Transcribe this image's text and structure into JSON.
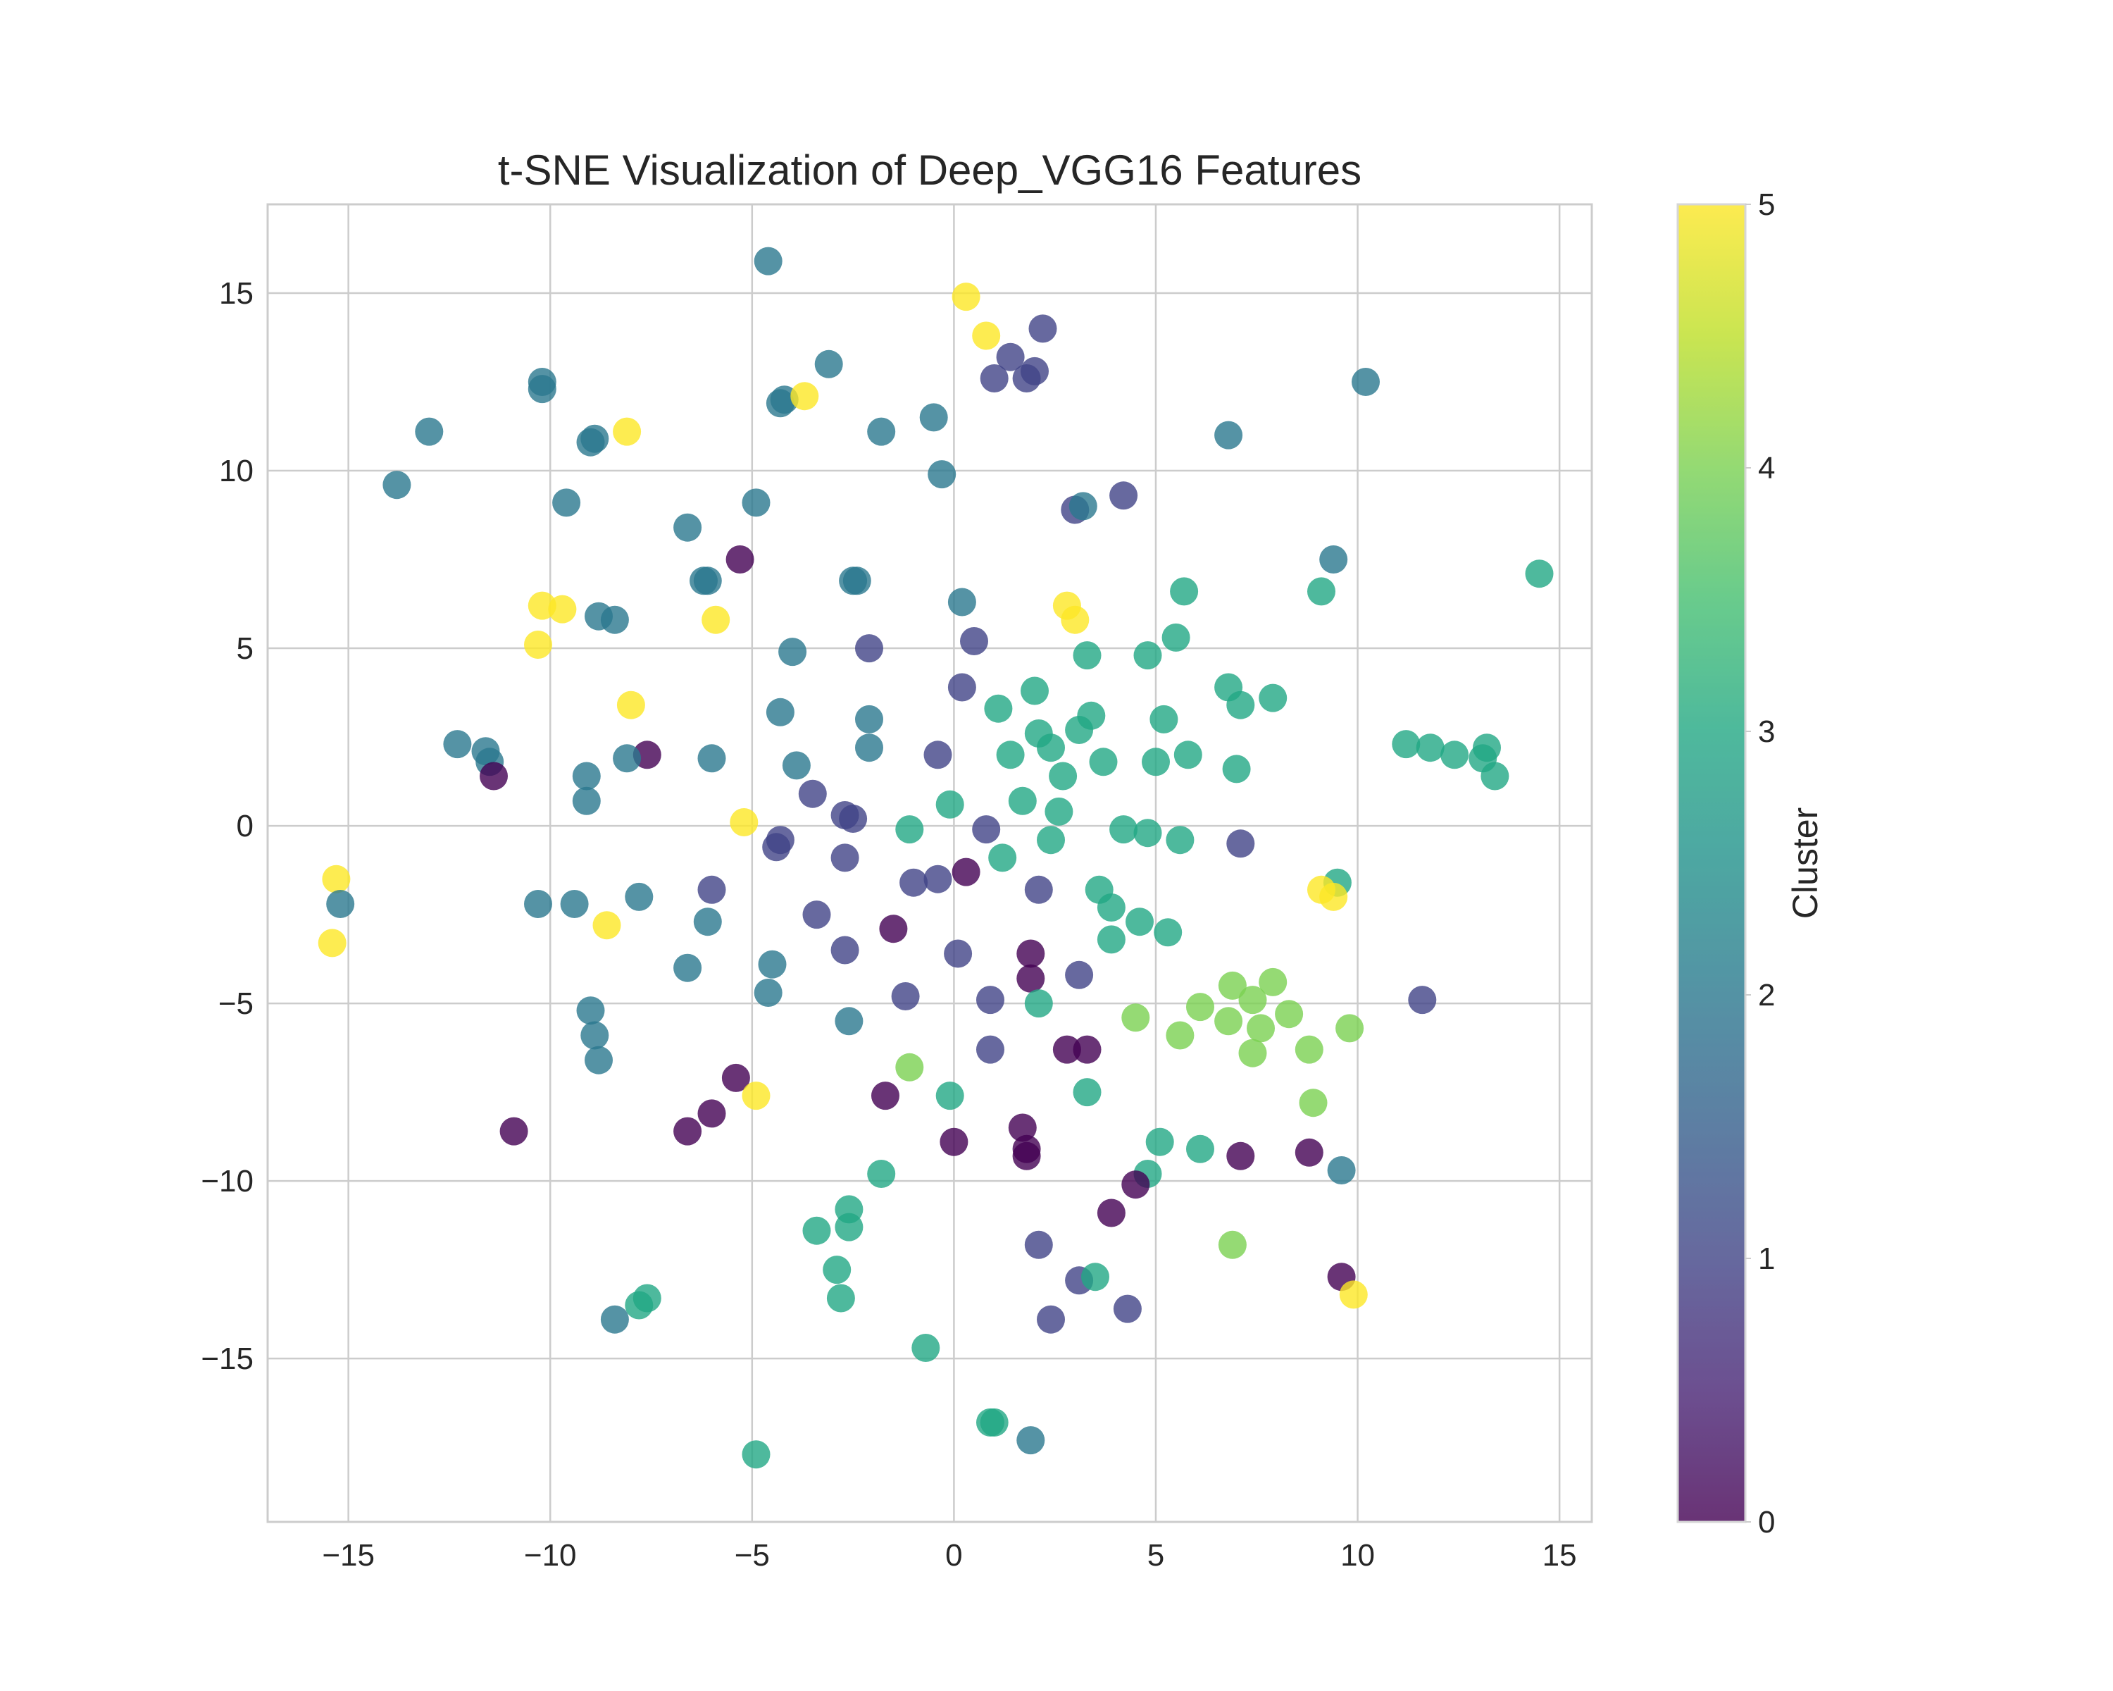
{
  "chart_data": {
    "type": "scatter",
    "title": "t-SNE Visualization of Deep_VGG16 Features",
    "xlabel": "",
    "ylabel": "",
    "xlim": [
      -17,
      15.8
    ],
    "ylim": [
      -19.6,
      17.5
    ],
    "xticks": [
      -15,
      -10,
      -5,
      0,
      5,
      10,
      15
    ],
    "xtick_labels": [
      "−15",
      "−10",
      "−5",
      "0",
      "5",
      "10",
      "15"
    ],
    "yticks": [
      -15,
      -10,
      -5,
      0,
      5,
      10,
      15
    ],
    "ytick_labels": [
      "−15",
      "−10",
      "−5",
      "0",
      "5",
      "10",
      "15"
    ],
    "grid": true,
    "colormap": "viridis",
    "colorbar": {
      "label": "Cluster",
      "min": 0,
      "max": 5,
      "ticks": [
        0,
        1,
        2,
        3,
        4,
        5
      ],
      "tick_labels": [
        "0",
        "1",
        "2",
        "3",
        "4",
        "5"
      ]
    },
    "points": [
      {
        "x": -4.6,
        "y": 15.9,
        "c": 2
      },
      {
        "x": 0.3,
        "y": 14.9,
        "c": 5
      },
      {
        "x": 0.8,
        "y": 13.8,
        "c": 5
      },
      {
        "x": 2.2,
        "y": 14.0,
        "c": 1
      },
      {
        "x": 1.4,
        "y": 13.2,
        "c": 1
      },
      {
        "x": 1.0,
        "y": 12.6,
        "c": 1
      },
      {
        "x": 1.8,
        "y": 12.6,
        "c": 1
      },
      {
        "x": 2.0,
        "y": 12.8,
        "c": 1
      },
      {
        "x": -3.1,
        "y": 13.0,
        "c": 2
      },
      {
        "x": -4.2,
        "y": 12.0,
        "c": 2
      },
      {
        "x": -4.3,
        "y": 11.9,
        "c": 2
      },
      {
        "x": -3.7,
        "y": 12.1,
        "c": 5
      },
      {
        "x": -1.8,
        "y": 11.1,
        "c": 2
      },
      {
        "x": -0.5,
        "y": 11.5,
        "c": 2
      },
      {
        "x": -0.3,
        "y": 9.9,
        "c": 2
      },
      {
        "x": -10.2,
        "y": 12.5,
        "c": 2
      },
      {
        "x": -10.2,
        "y": 12.3,
        "c": 2
      },
      {
        "x": -13.0,
        "y": 11.1,
        "c": 2
      },
      {
        "x": -13.8,
        "y": 9.6,
        "c": 2
      },
      {
        "x": -8.9,
        "y": 10.9,
        "c": 2
      },
      {
        "x": -9.0,
        "y": 10.8,
        "c": 2
      },
      {
        "x": -8.1,
        "y": 11.1,
        "c": 5
      },
      {
        "x": -9.6,
        "y": 9.1,
        "c": 2
      },
      {
        "x": -6.6,
        "y": 8.4,
        "c": 2
      },
      {
        "x": -4.9,
        "y": 9.1,
        "c": 2
      },
      {
        "x": -5.3,
        "y": 7.5,
        "c": 0
      },
      {
        "x": -6.1,
        "y": 6.9,
        "c": 2
      },
      {
        "x": -6.2,
        "y": 6.9,
        "c": 2
      },
      {
        "x": -2.4,
        "y": 6.9,
        "c": 2
      },
      {
        "x": -2.5,
        "y": 6.9,
        "c": 2
      },
      {
        "x": 3.0,
        "y": 8.9,
        "c": 1
      },
      {
        "x": 3.2,
        "y": 9.0,
        "c": 2
      },
      {
        "x": 4.2,
        "y": 9.3,
        "c": 1
      },
      {
        "x": 6.8,
        "y": 11.0,
        "c": 2
      },
      {
        "x": 10.2,
        "y": 12.5,
        "c": 2
      },
      {
        "x": 9.4,
        "y": 7.5,
        "c": 2
      },
      {
        "x": 9.1,
        "y": 6.6,
        "c": 3
      },
      {
        "x": 14.5,
        "y": 7.1,
        "c": 3
      },
      {
        "x": -10.2,
        "y": 6.2,
        "c": 5
      },
      {
        "x": -9.7,
        "y": 6.1,
        "c": 5
      },
      {
        "x": -10.3,
        "y": 5.1,
        "c": 5
      },
      {
        "x": -8.8,
        "y": 5.9,
        "c": 2
      },
      {
        "x": -8.4,
        "y": 5.8,
        "c": 2
      },
      {
        "x": -5.9,
        "y": 5.8,
        "c": 5
      },
      {
        "x": -4.0,
        "y": 4.9,
        "c": 2
      },
      {
        "x": -2.1,
        "y": 5.0,
        "c": 1
      },
      {
        "x": 0.2,
        "y": 6.3,
        "c": 2
      },
      {
        "x": 0.5,
        "y": 5.2,
        "c": 1
      },
      {
        "x": 2.8,
        "y": 6.2,
        "c": 5
      },
      {
        "x": 3.0,
        "y": 5.8,
        "c": 5
      },
      {
        "x": 5.7,
        "y": 6.6,
        "c": 3
      },
      {
        "x": 5.5,
        "y": 5.3,
        "c": 3
      },
      {
        "x": 4.8,
        "y": 4.8,
        "c": 3
      },
      {
        "x": 3.3,
        "y": 4.8,
        "c": 3
      },
      {
        "x": 0.2,
        "y": 3.9,
        "c": 1
      },
      {
        "x": 1.1,
        "y": 3.3,
        "c": 3
      },
      {
        "x": 2.0,
        "y": 3.8,
        "c": 3
      },
      {
        "x": 3.4,
        "y": 3.1,
        "c": 3
      },
      {
        "x": 3.1,
        "y": 2.7,
        "c": 3
      },
      {
        "x": 2.1,
        "y": 2.6,
        "c": 3
      },
      {
        "x": 2.4,
        "y": 2.2,
        "c": 3
      },
      {
        "x": 1.4,
        "y": 2.0,
        "c": 3
      },
      {
        "x": 3.7,
        "y": 1.8,
        "c": 3
      },
      {
        "x": 2.7,
        "y": 1.4,
        "c": 3
      },
      {
        "x": 5.2,
        "y": 3.0,
        "c": 3
      },
      {
        "x": 5.0,
        "y": 1.8,
        "c": 3
      },
      {
        "x": 5.8,
        "y": 2.0,
        "c": 3
      },
      {
        "x": 6.8,
        "y": 3.9,
        "c": 3
      },
      {
        "x": 7.1,
        "y": 3.4,
        "c": 3
      },
      {
        "x": 7.9,
        "y": 3.6,
        "c": 3
      },
      {
        "x": 7.0,
        "y": 1.6,
        "c": 3
      },
      {
        "x": -8.0,
        "y": 3.4,
        "c": 5
      },
      {
        "x": -7.6,
        "y": 2.0,
        "c": 0
      },
      {
        "x": -8.1,
        "y": 1.9,
        "c": 2
      },
      {
        "x": -12.3,
        "y": 2.3,
        "c": 2
      },
      {
        "x": -11.6,
        "y": 2.1,
        "c": 2
      },
      {
        "x": -11.5,
        "y": 1.8,
        "c": 2
      },
      {
        "x": -11.4,
        "y": 1.4,
        "c": 0
      },
      {
        "x": -9.1,
        "y": 1.4,
        "c": 2
      },
      {
        "x": -9.1,
        "y": 0.7,
        "c": 2
      },
      {
        "x": -6.0,
        "y": 1.9,
        "c": 2
      },
      {
        "x": -4.3,
        "y": 3.2,
        "c": 2
      },
      {
        "x": -3.9,
        "y": 1.7,
        "c": 2
      },
      {
        "x": -2.1,
        "y": 3.0,
        "c": 2
      },
      {
        "x": -2.1,
        "y": 2.2,
        "c": 2
      },
      {
        "x": -3.5,
        "y": 0.9,
        "c": 1
      },
      {
        "x": -0.4,
        "y": 2.0,
        "c": 1
      },
      {
        "x": -5.2,
        "y": 0.1,
        "c": 5
      },
      {
        "x": -2.7,
        "y": 0.3,
        "c": 1
      },
      {
        "x": -2.5,
        "y": 0.2,
        "c": 1
      },
      {
        "x": -4.3,
        "y": -0.4,
        "c": 1
      },
      {
        "x": -4.4,
        "y": -0.6,
        "c": 1
      },
      {
        "x": -2.7,
        "y": -0.9,
        "c": 1
      },
      {
        "x": -1.1,
        "y": -0.1,
        "c": 3
      },
      {
        "x": -0.1,
        "y": 0.6,
        "c": 3
      },
      {
        "x": 0.8,
        "y": -0.1,
        "c": 1
      },
      {
        "x": 1.7,
        "y": 0.7,
        "c": 3
      },
      {
        "x": 2.6,
        "y": 0.4,
        "c": 3
      },
      {
        "x": 2.4,
        "y": -0.4,
        "c": 3
      },
      {
        "x": 1.2,
        "y": -0.9,
        "c": 3
      },
      {
        "x": 4.2,
        "y": -0.1,
        "c": 3
      },
      {
        "x": 4.8,
        "y": -0.2,
        "c": 3
      },
      {
        "x": 5.6,
        "y": -0.4,
        "c": 3
      },
      {
        "x": 7.1,
        "y": -0.5,
        "c": 1
      },
      {
        "x": 11.2,
        "y": 2.3,
        "c": 3
      },
      {
        "x": 11.8,
        "y": 2.2,
        "c": 3
      },
      {
        "x": 12.4,
        "y": 2.0,
        "c": 3
      },
      {
        "x": 13.1,
        "y": 1.9,
        "c": 3
      },
      {
        "x": 13.2,
        "y": 2.2,
        "c": 3
      },
      {
        "x": 13.4,
        "y": 1.4,
        "c": 3
      },
      {
        "x": -15.3,
        "y": -1.5,
        "c": 5
      },
      {
        "x": -15.2,
        "y": -2.2,
        "c": 2
      },
      {
        "x": -15.4,
        "y": -3.3,
        "c": 5
      },
      {
        "x": -10.3,
        "y": -2.2,
        "c": 2
      },
      {
        "x": -9.4,
        "y": -2.2,
        "c": 2
      },
      {
        "x": -7.8,
        "y": -2.0,
        "c": 2
      },
      {
        "x": -8.6,
        "y": -2.8,
        "c": 5
      },
      {
        "x": -6.0,
        "y": -1.8,
        "c": 1
      },
      {
        "x": -6.1,
        "y": -2.7,
        "c": 2
      },
      {
        "x": -6.6,
        "y": -4.0,
        "c": 2
      },
      {
        "x": -3.4,
        "y": -2.5,
        "c": 1
      },
      {
        "x": -1.5,
        "y": -2.9,
        "c": 0
      },
      {
        "x": -1.0,
        "y": -1.6,
        "c": 1
      },
      {
        "x": -0.4,
        "y": -1.5,
        "c": 1
      },
      {
        "x": 0.3,
        "y": -1.3,
        "c": 0
      },
      {
        "x": 2.1,
        "y": -1.8,
        "c": 1
      },
      {
        "x": 3.6,
        "y": -1.8,
        "c": 3
      },
      {
        "x": 3.9,
        "y": -2.3,
        "c": 3
      },
      {
        "x": 4.6,
        "y": -2.7,
        "c": 3
      },
      {
        "x": 5.3,
        "y": -3.0,
        "c": 3
      },
      {
        "x": 3.9,
        "y": -3.2,
        "c": 3
      },
      {
        "x": 9.5,
        "y": -1.6,
        "c": 3
      },
      {
        "x": 9.1,
        "y": -1.8,
        "c": 5
      },
      {
        "x": 9.4,
        "y": -2.0,
        "c": 5
      },
      {
        "x": -2.7,
        "y": -3.5,
        "c": 1
      },
      {
        "x": 0.1,
        "y": -3.6,
        "c": 1
      },
      {
        "x": 1.9,
        "y": -3.6,
        "c": 0
      },
      {
        "x": 1.9,
        "y": -4.3,
        "c": 0
      },
      {
        "x": 3.1,
        "y": -4.2,
        "c": 1
      },
      {
        "x": -4.5,
        "y": -3.9,
        "c": 2
      },
      {
        "x": -4.6,
        "y": -4.7,
        "c": 2
      },
      {
        "x": -1.2,
        "y": -4.8,
        "c": 1
      },
      {
        "x": 0.9,
        "y": -4.9,
        "c": 1
      },
      {
        "x": -2.6,
        "y": -5.5,
        "c": 2
      },
      {
        "x": 2.1,
        "y": -5.0,
        "c": 3
      },
      {
        "x": -9.0,
        "y": -5.2,
        "c": 2
      },
      {
        "x": -8.9,
        "y": -5.9,
        "c": 2
      },
      {
        "x": -8.8,
        "y": -6.6,
        "c": 2
      },
      {
        "x": 4.5,
        "y": -5.4,
        "c": 4
      },
      {
        "x": 6.1,
        "y": -5.1,
        "c": 4
      },
      {
        "x": 5.6,
        "y": -5.9,
        "c": 4
      },
      {
        "x": 6.9,
        "y": -4.5,
        "c": 4
      },
      {
        "x": 7.4,
        "y": -4.9,
        "c": 4
      },
      {
        "x": 6.8,
        "y": -5.5,
        "c": 4
      },
      {
        "x": 7.9,
        "y": -4.4,
        "c": 4
      },
      {
        "x": 7.6,
        "y": -5.7,
        "c": 4
      },
      {
        "x": 8.3,
        "y": -5.3,
        "c": 4
      },
      {
        "x": 7.4,
        "y": -6.4,
        "c": 4
      },
      {
        "x": 8.8,
        "y": -6.3,
        "c": 4
      },
      {
        "x": 9.8,
        "y": -5.7,
        "c": 4
      },
      {
        "x": 11.6,
        "y": -4.9,
        "c": 1
      },
      {
        "x": 8.9,
        "y": -7.8,
        "c": 4
      },
      {
        "x": 2.8,
        "y": -6.3,
        "c": 0
      },
      {
        "x": 3.3,
        "y": -6.3,
        "c": 0
      },
      {
        "x": 0.9,
        "y": -6.3,
        "c": 1
      },
      {
        "x": 3.3,
        "y": -7.5,
        "c": 3
      },
      {
        "x": -1.1,
        "y": -6.8,
        "c": 4
      },
      {
        "x": -0.1,
        "y": -7.6,
        "c": 3
      },
      {
        "x": -1.7,
        "y": -7.6,
        "c": 0
      },
      {
        "x": -5.4,
        "y": -7.1,
        "c": 0
      },
      {
        "x": -4.9,
        "y": -7.6,
        "c": 5
      },
      {
        "x": -6.0,
        "y": -8.1,
        "c": 0
      },
      {
        "x": -6.6,
        "y": -8.6,
        "c": 0
      },
      {
        "x": -10.9,
        "y": -8.6,
        "c": 0
      },
      {
        "x": 0.0,
        "y": -8.9,
        "c": 0
      },
      {
        "x": 1.7,
        "y": -8.5,
        "c": 0
      },
      {
        "x": 1.8,
        "y": -9.1,
        "c": 0
      },
      {
        "x": 1.8,
        "y": -9.3,
        "c": 0
      },
      {
        "x": -1.8,
        "y": -9.8,
        "c": 3
      },
      {
        "x": 5.1,
        "y": -8.9,
        "c": 3
      },
      {
        "x": 6.1,
        "y": -9.1,
        "c": 3
      },
      {
        "x": 4.8,
        "y": -9.8,
        "c": 3
      },
      {
        "x": 4.5,
        "y": -10.1,
        "c": 0
      },
      {
        "x": 7.1,
        "y": -9.3,
        "c": 0
      },
      {
        "x": 8.8,
        "y": -9.2,
        "c": 0
      },
      {
        "x": 9.6,
        "y": -9.7,
        "c": 2
      },
      {
        "x": 3.9,
        "y": -10.9,
        "c": 0
      },
      {
        "x": -2.6,
        "y": -10.8,
        "c": 3
      },
      {
        "x": -2.6,
        "y": -11.3,
        "c": 3
      },
      {
        "x": -3.4,
        "y": -11.4,
        "c": 3
      },
      {
        "x": 2.1,
        "y": -11.8,
        "c": 1
      },
      {
        "x": 6.9,
        "y": -11.8,
        "c": 4
      },
      {
        "x": -2.9,
        "y": -12.5,
        "c": 3
      },
      {
        "x": -2.8,
        "y": -13.3,
        "c": 3
      },
      {
        "x": 3.1,
        "y": -12.8,
        "c": 1
      },
      {
        "x": 3.5,
        "y": -12.7,
        "c": 3
      },
      {
        "x": 9.6,
        "y": -12.7,
        "c": 0
      },
      {
        "x": 9.9,
        "y": -13.2,
        "c": 5
      },
      {
        "x": 4.3,
        "y": -13.6,
        "c": 1
      },
      {
        "x": 2.4,
        "y": -13.9,
        "c": 1
      },
      {
        "x": -7.6,
        "y": -13.3,
        "c": 3
      },
      {
        "x": -7.8,
        "y": -13.5,
        "c": 3
      },
      {
        "x": -8.4,
        "y": -13.9,
        "c": 2
      },
      {
        "x": -0.7,
        "y": -14.7,
        "c": 3
      },
      {
        "x": 0.9,
        "y": -16.8,
        "c": 3
      },
      {
        "x": 1.0,
        "y": -16.8,
        "c": 3
      },
      {
        "x": 1.9,
        "y": -17.3,
        "c": 2
      },
      {
        "x": -4.9,
        "y": -17.7,
        "c": 3
      }
    ]
  }
}
